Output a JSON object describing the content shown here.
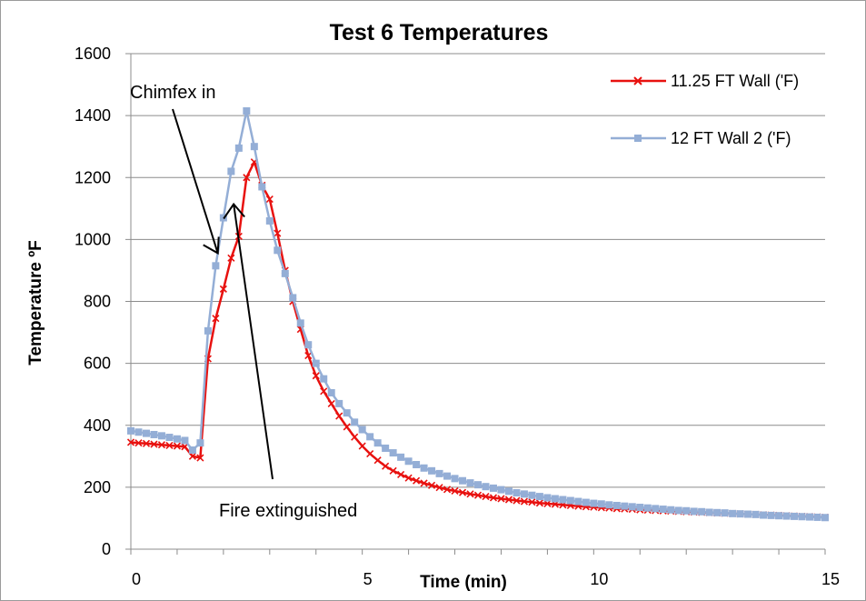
{
  "chart_data": {
    "type": "line",
    "title": "Test 6 Temperatures",
    "xlabel": "Time (min)",
    "ylabel": "Temperature ºF",
    "xlim": [
      0,
      15
    ],
    "ylim": [
      0,
      1600
    ],
    "x_ticks": [
      "0",
      "5",
      "10",
      "15"
    ],
    "y_ticks": [
      "0",
      "200",
      "400",
      "600",
      "800",
      "1000",
      "1200",
      "1400",
      "1600"
    ],
    "grid": "horizontal",
    "legend_position": "top-right",
    "x": [
      0,
      0.1667,
      0.3333,
      0.5,
      0.6667,
      0.8333,
      1.0,
      1.1667,
      1.3333,
      1.5,
      1.6667,
      1.8333,
      2.0,
      2.1667,
      2.3333,
      2.5,
      2.6667,
      2.8333,
      3.0,
      3.1667,
      3.3333,
      3.5,
      3.6667,
      3.8333,
      4.0,
      4.1667,
      4.3333,
      4.5,
      4.6667,
      4.8333,
      5.0,
      5.1667,
      5.3333,
      5.5,
      5.6667,
      5.8333,
      6.0,
      6.1667,
      6.3333,
      6.5,
      6.6667,
      6.8333,
      7.0,
      7.1667,
      7.3333,
      7.5,
      7.6667,
      7.8333,
      8.0,
      8.1667,
      8.3333,
      8.5,
      8.6667,
      8.8333,
      9.0,
      9.1667,
      9.3333,
      9.5,
      9.6667,
      9.8333,
      10.0,
      10.1667,
      10.3333,
      10.5,
      10.6667,
      10.8333,
      11.0,
      11.1667,
      11.3333,
      11.5,
      11.6667,
      11.8333,
      12.0,
      12.1667,
      12.3333,
      12.5,
      12.6667,
      12.8333,
      13.0,
      13.1667,
      13.3333,
      13.5,
      13.6667,
      13.8333,
      14.0,
      14.1667,
      14.3333,
      14.5,
      14.6667,
      14.8333,
      15.0
    ],
    "series": [
      {
        "name": "11.25 FT Wall ('F)",
        "color": "#e8110f",
        "marker": "x",
        "values": [
          345,
          343,
          341,
          339,
          337,
          335,
          333,
          331,
          300,
          295,
          615,
          745,
          840,
          940,
          1010,
          1200,
          1250,
          1175,
          1130,
          1020,
          900,
          800,
          710,
          625,
          560,
          510,
          470,
          430,
          395,
          362,
          333,
          308,
          287,
          268,
          253,
          241,
          230,
          221,
          213,
          206,
          199,
          193,
          188,
          183,
          178,
          174,
          170,
          166,
          163,
          160,
          157,
          154,
          152,
          149,
          147,
          145,
          143,
          141,
          139,
          137,
          136,
          134,
          133,
          131,
          130,
          129,
          127,
          126,
          125,
          124,
          123,
          122,
          121,
          120,
          119,
          118,
          117,
          116,
          115,
          114,
          113,
          112,
          111,
          110,
          109,
          108,
          107,
          106,
          105,
          104,
          103
        ]
      },
      {
        "name": "12 FT Wall 2 ('F)",
        "color": "#94aed6",
        "marker": "square",
        "values": [
          382,
          378,
          374,
          370,
          366,
          361,
          356,
          351,
          320,
          343,
          705,
          915,
          1070,
          1220,
          1295,
          1415,
          1300,
          1170,
          1060,
          965,
          890,
          812,
          730,
          660,
          600,
          550,
          505,
          470,
          440,
          410,
          386,
          363,
          343,
          326,
          311,
          297,
          284,
          273,
          262,
          253,
          244,
          236,
          228,
          221,
          214,
          208,
          202,
          197,
          192,
          187,
          182,
          178,
          174,
          170,
          166,
          163,
          160,
          157,
          154,
          151,
          148,
          146,
          143,
          141,
          139,
          137,
          135,
          133,
          131,
          129,
          127,
          125,
          124,
          122,
          121,
          119,
          118,
          117,
          115,
          114,
          113,
          112,
          110,
          109,
          108,
          107,
          106,
          105,
          104,
          103,
          102
        ]
      }
    ],
    "annotations": [
      {
        "text": "Chimfex in",
        "points_to_x": 1.8,
        "points_to_y": 950
      },
      {
        "text": "Fire extinguished",
        "points_to_x": 2.3,
        "points_to_y": 1120
      }
    ]
  }
}
